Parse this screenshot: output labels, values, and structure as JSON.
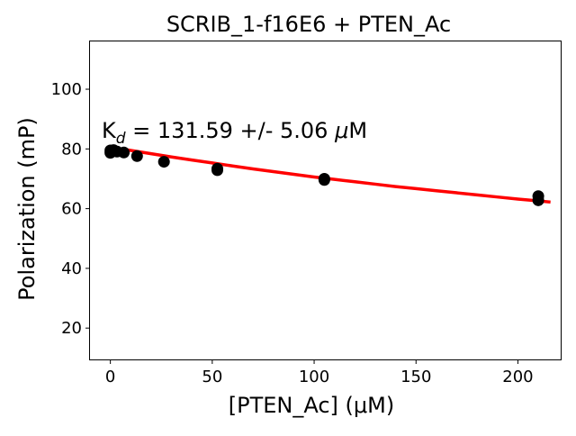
{
  "chart_data": {
    "type": "scatter",
    "title": "SCRIB_1-f16E6 + PTEN_Ac",
    "xlabel": "[PTEN_Ac] (μM)",
    "ylabel": "Polarization (mP)",
    "annotation": {
      "prefix": "K",
      "subscript": "d",
      "value": " = 131.59 +/- 5.06 ",
      "mu": "μ",
      "unit": "M"
    },
    "xlim": [
      -10,
      221
    ],
    "ylim": [
      9.5,
      116
    ],
    "x_ticks": [
      0,
      50,
      100,
      150,
      200
    ],
    "y_ticks": [
      20,
      40,
      60,
      80,
      100
    ],
    "grid": false,
    "series": [
      {
        "kind": "scatter",
        "color": "#000000",
        "points": [
          {
            "x": 0,
            "y": 78.7
          },
          {
            "x": 0,
            "y": 79.5
          },
          {
            "x": 0.8,
            "y": 79.3
          },
          {
            "x": 1.6,
            "y": 79.6
          },
          {
            "x": 3.3,
            "y": 79.1
          },
          {
            "x": 6.6,
            "y": 78.8
          },
          {
            "x": 13.1,
            "y": 77.6
          },
          {
            "x": 26.3,
            "y": 75.7
          },
          {
            "x": 52.5,
            "y": 72.9
          },
          {
            "x": 52.5,
            "y": 73.4
          },
          {
            "x": 105,
            "y": 69.6
          },
          {
            "x": 105,
            "y": 70.0
          },
          {
            "x": 210,
            "y": 62.8
          },
          {
            "x": 210,
            "y": 64.2
          }
        ]
      },
      {
        "kind": "line",
        "color": "#ff0000",
        "points": [
          {
            "x": 0,
            "y": 80.6
          },
          {
            "x": 10,
            "y": 79.5
          },
          {
            "x": 20,
            "y": 78.4
          },
          {
            "x": 30,
            "y": 77.3
          },
          {
            "x": 40,
            "y": 76.3
          },
          {
            "x": 50,
            "y": 75.3
          },
          {
            "x": 60,
            "y": 74.3
          },
          {
            "x": 70,
            "y": 73.3
          },
          {
            "x": 80,
            "y": 72.4
          },
          {
            "x": 90,
            "y": 71.5
          },
          {
            "x": 100,
            "y": 70.6
          },
          {
            "x": 110,
            "y": 69.8
          },
          {
            "x": 120,
            "y": 69.0
          },
          {
            "x": 130,
            "y": 68.2
          },
          {
            "x": 140,
            "y": 67.4
          },
          {
            "x": 150,
            "y": 66.7
          },
          {
            "x": 160,
            "y": 66.0
          },
          {
            "x": 170,
            "y": 65.3
          },
          {
            "x": 180,
            "y": 64.6
          },
          {
            "x": 190,
            "y": 63.9
          },
          {
            "x": 200,
            "y": 63.2
          },
          {
            "x": 210,
            "y": 62.6
          },
          {
            "x": 216,
            "y": 62.2
          }
        ]
      }
    ]
  }
}
